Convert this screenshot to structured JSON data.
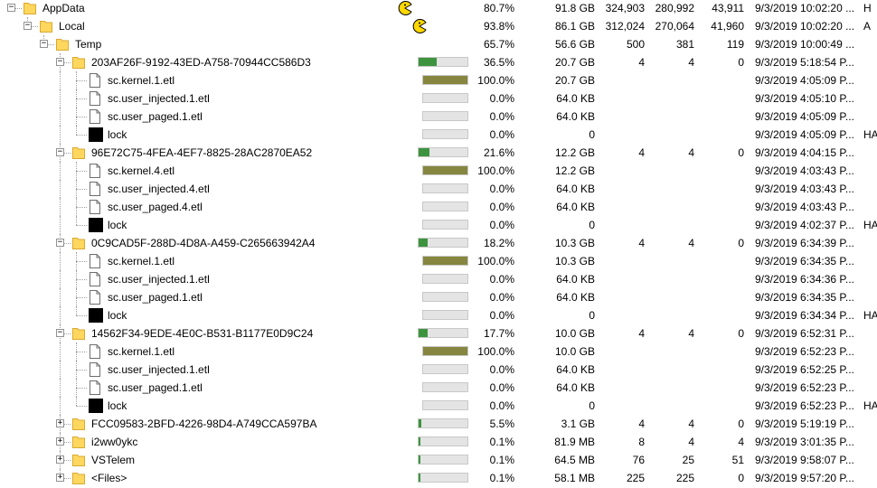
{
  "colors": {
    "folder": "#FFD75E",
    "bar_fill_file": "#868640",
    "bar_fill_folder": "#3E943E",
    "pacman": "#FFD800",
    "lock_icon": "#000000"
  },
  "rows": [
    {
      "depth": 0,
      "type": "folder",
      "expander": "minus",
      "name": "AppData",
      "indicator": "pacman",
      "percent": "80.7%",
      "size": "91.8 GB",
      "items": "324,903",
      "files": "280,992",
      "subdirs": "43,911",
      "modified": "9/3/2019 10:02:20 ...",
      "attrib": "H"
    },
    {
      "depth": 1,
      "type": "folder",
      "expander": "minus",
      "name": "Local",
      "indicator": "pacman",
      "percent": "93.8%",
      "size": "86.1 GB",
      "items": "312,024",
      "files": "270,064",
      "subdirs": "41,960",
      "modified": "9/3/2019 10:02:20 ...",
      "attrib": "A"
    },
    {
      "depth": 2,
      "type": "folder",
      "expander": "minus",
      "name": "Temp",
      "indicator": "none",
      "percent": "65.7%",
      "size": "56.6 GB",
      "items": "500",
      "files": "381",
      "subdirs": "119",
      "modified": "9/3/2019 10:00:49 ...",
      "attrib": ""
    },
    {
      "depth": 3,
      "type": "folder",
      "expander": "minus",
      "name": "203AF26F-9192-43ED-A758-70944CC586D3",
      "indicator": "bar",
      "fill": 0.365,
      "percent": "36.5%",
      "size": "20.7 GB",
      "items": "4",
      "files": "4",
      "subdirs": "0",
      "modified": "9/3/2019 5:18:54 P...",
      "attrib": ""
    },
    {
      "depth": 4,
      "type": "file",
      "expander": "none",
      "name": "sc.kernel.1.etl",
      "indicator": "bar",
      "fill": 1.0,
      "percent": "100.0%",
      "size": "20.7 GB",
      "items": "",
      "files": "",
      "subdirs": "",
      "modified": "9/3/2019 4:05:09 P...",
      "attrib": ""
    },
    {
      "depth": 4,
      "type": "file",
      "expander": "none",
      "name": "sc.user_injected.1.etl",
      "indicator": "bar",
      "fill": 0,
      "percent": "0.0%",
      "size": "64.0 KB",
      "items": "",
      "files": "",
      "subdirs": "",
      "modified": "9/3/2019 4:05:10 P...",
      "attrib": ""
    },
    {
      "depth": 4,
      "type": "file",
      "expander": "none",
      "name": "sc.user_paged.1.etl",
      "indicator": "bar",
      "fill": 0,
      "percent": "0.0%",
      "size": "64.0 KB",
      "items": "",
      "files": "",
      "subdirs": "",
      "modified": "9/3/2019 4:05:09 P...",
      "attrib": ""
    },
    {
      "depth": 4,
      "type": "lock",
      "expander": "none",
      "name": "lock",
      "indicator": "bar",
      "fill": 0,
      "percent": "0.0%",
      "size": "0",
      "items": "",
      "files": "",
      "subdirs": "",
      "modified": "9/3/2019 4:05:09 P...",
      "attrib": "HA"
    },
    {
      "depth": 3,
      "type": "folder",
      "expander": "minus",
      "name": "96E72C75-4FEA-4EF7-8825-28AC2870EA52",
      "indicator": "bar",
      "fill": 0.216,
      "percent": "21.6%",
      "size": "12.2 GB",
      "items": "4",
      "files": "4",
      "subdirs": "0",
      "modified": "9/3/2019 4:04:15 P...",
      "attrib": ""
    },
    {
      "depth": 4,
      "type": "file",
      "expander": "none",
      "name": "sc.kernel.4.etl",
      "indicator": "bar",
      "fill": 1.0,
      "percent": "100.0%",
      "size": "12.2 GB",
      "items": "",
      "files": "",
      "subdirs": "",
      "modified": "9/3/2019 4:03:43 P...",
      "attrib": ""
    },
    {
      "depth": 4,
      "type": "file",
      "expander": "none",
      "name": "sc.user_injected.4.etl",
      "indicator": "bar",
      "fill": 0,
      "percent": "0.0%",
      "size": "64.0 KB",
      "items": "",
      "files": "",
      "subdirs": "",
      "modified": "9/3/2019 4:03:43 P...",
      "attrib": ""
    },
    {
      "depth": 4,
      "type": "file",
      "expander": "none",
      "name": "sc.user_paged.4.etl",
      "indicator": "bar",
      "fill": 0,
      "percent": "0.0%",
      "size": "64.0 KB",
      "items": "",
      "files": "",
      "subdirs": "",
      "modified": "9/3/2019 4:03:43 P...",
      "attrib": ""
    },
    {
      "depth": 4,
      "type": "lock",
      "expander": "none",
      "name": "lock",
      "indicator": "bar",
      "fill": 0,
      "percent": "0.0%",
      "size": "0",
      "items": "",
      "files": "",
      "subdirs": "",
      "modified": "9/3/2019 4:02:37 P...",
      "attrib": "HA"
    },
    {
      "depth": 3,
      "type": "folder",
      "expander": "minus",
      "name": "0C9CAD5F-288D-4D8A-A459-C265663942A4",
      "indicator": "bar",
      "fill": 0.182,
      "percent": "18.2%",
      "size": "10.3 GB",
      "items": "4",
      "files": "4",
      "subdirs": "0",
      "modified": "9/3/2019 6:34:39 P...",
      "attrib": ""
    },
    {
      "depth": 4,
      "type": "file",
      "expander": "none",
      "name": "sc.kernel.1.etl",
      "indicator": "bar",
      "fill": 1.0,
      "percent": "100.0%",
      "size": "10.3 GB",
      "items": "",
      "files": "",
      "subdirs": "",
      "modified": "9/3/2019 6:34:35 P...",
      "attrib": ""
    },
    {
      "depth": 4,
      "type": "file",
      "expander": "none",
      "name": "sc.user_injected.1.etl",
      "indicator": "bar",
      "fill": 0,
      "percent": "0.0%",
      "size": "64.0 KB",
      "items": "",
      "files": "",
      "subdirs": "",
      "modified": "9/3/2019 6:34:36 P...",
      "attrib": ""
    },
    {
      "depth": 4,
      "type": "file",
      "expander": "none",
      "name": "sc.user_paged.1.etl",
      "indicator": "bar",
      "fill": 0,
      "percent": "0.0%",
      "size": "64.0 KB",
      "items": "",
      "files": "",
      "subdirs": "",
      "modified": "9/3/2019 6:34:35 P...",
      "attrib": ""
    },
    {
      "depth": 4,
      "type": "lock",
      "expander": "none",
      "name": "lock",
      "indicator": "bar",
      "fill": 0,
      "percent": "0.0%",
      "size": "0",
      "items": "",
      "files": "",
      "subdirs": "",
      "modified": "9/3/2019 6:34:34 P...",
      "attrib": "HA"
    },
    {
      "depth": 3,
      "type": "folder",
      "expander": "minus",
      "name": "14562F34-9EDE-4E0C-B531-B1177E0D9C24",
      "indicator": "bar",
      "fill": 0.177,
      "percent": "17.7%",
      "size": "10.0 GB",
      "items": "4",
      "files": "4",
      "subdirs": "0",
      "modified": "9/3/2019 6:52:31 P...",
      "attrib": ""
    },
    {
      "depth": 4,
      "type": "file",
      "expander": "none",
      "name": "sc.kernel.1.etl",
      "indicator": "bar",
      "fill": 1.0,
      "percent": "100.0%",
      "size": "10.0 GB",
      "items": "",
      "files": "",
      "subdirs": "",
      "modified": "9/3/2019 6:52:23 P...",
      "attrib": ""
    },
    {
      "depth": 4,
      "type": "file",
      "expander": "none",
      "name": "sc.user_injected.1.etl",
      "indicator": "bar",
      "fill": 0,
      "percent": "0.0%",
      "size": "64.0 KB",
      "items": "",
      "files": "",
      "subdirs": "",
      "modified": "9/3/2019 6:52:25 P...",
      "attrib": ""
    },
    {
      "depth": 4,
      "type": "file",
      "expander": "none",
      "name": "sc.user_paged.1.etl",
      "indicator": "bar",
      "fill": 0,
      "percent": "0.0%",
      "size": "64.0 KB",
      "items": "",
      "files": "",
      "subdirs": "",
      "modified": "9/3/2019 6:52:23 P...",
      "attrib": ""
    },
    {
      "depth": 4,
      "type": "lock",
      "expander": "none",
      "name": "lock",
      "indicator": "bar",
      "fill": 0,
      "percent": "0.0%",
      "size": "0",
      "items": "",
      "files": "",
      "subdirs": "",
      "modified": "9/3/2019 6:52:23 P...",
      "attrib": "HA"
    },
    {
      "depth": 3,
      "type": "folder",
      "expander": "plus",
      "name": "FCC09583-2BFD-4226-98D4-A749CCA597BA",
      "indicator": "bar",
      "fill": 0.055,
      "percent": "5.5%",
      "size": "3.1 GB",
      "items": "4",
      "files": "4",
      "subdirs": "0",
      "modified": "9/3/2019 5:19:19 P...",
      "attrib": ""
    },
    {
      "depth": 3,
      "type": "folder",
      "expander": "plus",
      "name": "i2ww0ykc",
      "indicator": "bar",
      "fill": 0.001,
      "percent": "0.1%",
      "size": "81.9 MB",
      "items": "8",
      "files": "4",
      "subdirs": "4",
      "modified": "9/3/2019 3:01:35 P...",
      "attrib": ""
    },
    {
      "depth": 3,
      "type": "folder",
      "expander": "plus",
      "name": "VSTelem",
      "indicator": "bar",
      "fill": 0.001,
      "percent": "0.1%",
      "size": "64.5 MB",
      "items": "76",
      "files": "25",
      "subdirs": "51",
      "modified": "9/3/2019 9:58:07 P...",
      "attrib": ""
    },
    {
      "depth": 3,
      "type": "folder",
      "expander": "plus",
      "name": "<Files>",
      "indicator": "bar",
      "fill": 0.001,
      "percent": "0.1%",
      "size": "58.1 MB",
      "items": "225",
      "files": "225",
      "subdirs": "0",
      "modified": "9/3/2019 9:57:20 P...",
      "attrib": ""
    }
  ]
}
